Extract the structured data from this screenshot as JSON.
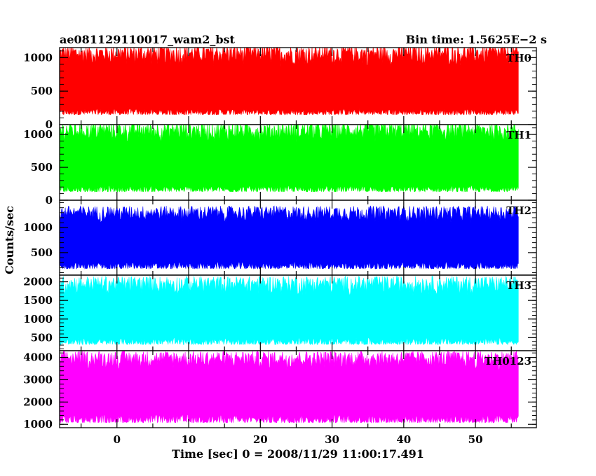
{
  "header": {
    "title": "ae081129110017_wam2_bst",
    "bin_time": "Bin time: 1.5625E−2 s"
  },
  "chart_data": {
    "type": "line",
    "title": "ae081129110017_wam2_bst",
    "xlabel": "Time [sec] 0 = 2008/11/29 11:00:17.491",
    "ylabel": "Counts/sec",
    "xlim": [
      -8,
      58.5
    ],
    "xticks": [
      0,
      10,
      20,
      30,
      40,
      50
    ],
    "x_start": -8,
    "x_end": 56,
    "grid": false,
    "panels": [
      {
        "name": "TH0",
        "color": "#ff0000",
        "ylim": [
          0,
          1150
        ],
        "yticks": [
          0,
          500,
          1000
        ],
        "y_low": 130,
        "y_high": 1150,
        "y_mean": 500
      },
      {
        "name": "TH1",
        "color": "#00ff00",
        "ylim": [
          0,
          1150
        ],
        "yticks": [
          0,
          500,
          1000
        ],
        "y_low": 110,
        "y_high": 1150,
        "y_mean": 500
      },
      {
        "name": "TH2",
        "color": "#0000ff",
        "ylim": [
          50,
          1550
        ],
        "yticks": [
          500,
          1000
        ],
        "y_low": 150,
        "y_high": 1400,
        "y_mean": 700
      },
      {
        "name": "TH3",
        "color": "#00ffff",
        "ylim": [
          150,
          2180
        ],
        "yticks": [
          500,
          1000,
          1500,
          2000
        ],
        "y_low": 280,
        "y_high": 2100,
        "y_mean": 1000
      },
      {
        "name": "TH0123",
        "color": "#ff00ff",
        "ylim": [
          850,
          4300
        ],
        "yticks": [
          1000,
          2000,
          3000,
          4000
        ],
        "y_low": 1000,
        "y_high": 4200,
        "y_mean": 2500
      }
    ]
  }
}
